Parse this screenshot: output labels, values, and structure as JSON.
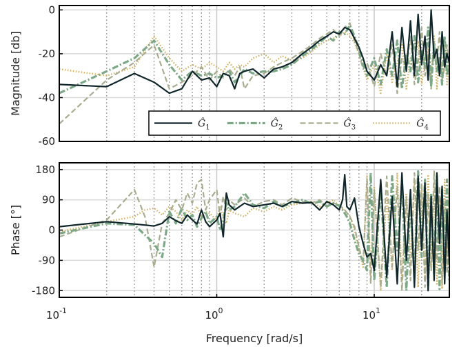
{
  "colors": {
    "G1": "#10262a",
    "G2": "#7ca887",
    "G3": "#a8ad8f",
    "G4": "#d1b266",
    "grid": "#d9d9d9",
    "major_grid": "#c8c8c8",
    "minor_grid": "#9a9a9a",
    "axis": "#000000"
  },
  "chart_data": [
    {
      "type": "line",
      "xscale": "log",
      "xlim": [
        0.1,
        30
      ],
      "ylim": [
        -60,
        2
      ],
      "ylabel": "Magnitude [db]",
      "xlabel": "",
      "yticks": [
        0,
        -20,
        -40,
        -60
      ],
      "ytick_labels": [
        "0",
        "-20",
        "-40",
        "-60"
      ],
      "legend": {
        "placement": "bottom-right",
        "entries": [
          {
            "label": "Ĝ₁",
            "base": "Ĝ",
            "sub": "1"
          },
          {
            "label": "Ĝ₂",
            "base": "Ĝ",
            "sub": "2"
          },
          {
            "label": "Ĝ₃",
            "base": "Ĝ",
            "sub": "3"
          },
          {
            "label": "Ĝ₄",
            "base": "Ĝ",
            "sub": "4"
          }
        ]
      },
      "series": [
        {
          "key": "G1",
          "style": "solid",
          "x": [
            0.1,
            0.2,
            0.3,
            0.4,
            0.5,
            0.6,
            0.7,
            0.8,
            0.9,
            1.0,
            1.1,
            1.2,
            1.3,
            1.4,
            1.5,
            1.7,
            2.0,
            2.3,
            2.6,
            3.0,
            3.5,
            4.0,
            4.5,
            5.0,
            5.5,
            6.0,
            6.5,
            7.0,
            7.5,
            8.0,
            8.5,
            9.0,
            10,
            11,
            12,
            13,
            14,
            15,
            16,
            17,
            18,
            19,
            20,
            21,
            22,
            23,
            24,
            25,
            26,
            27,
            28,
            29,
            30
          ],
          "y": [
            -34,
            -35,
            -29,
            -33,
            -38,
            -36,
            -28,
            -32,
            -31,
            -35,
            -29,
            -30,
            -36,
            -29,
            -28,
            -27,
            -31,
            -27,
            -26,
            -24,
            -20,
            -17,
            -14,
            -12,
            -10,
            -11,
            -8,
            -9,
            -13,
            -17,
            -22,
            -28,
            -32,
            -25,
            -30,
            -10,
            -35,
            -8,
            -28,
            -5,
            -30,
            -2,
            -25,
            -12,
            -32,
            0,
            -22,
            -18,
            -30,
            -10,
            -26,
            -20,
            -24
          ]
        },
        {
          "key": "G2",
          "style": "dashdot",
          "x": [
            0.1,
            0.2,
            0.3,
            0.4,
            0.5,
            0.6,
            0.7,
            0.8,
            0.9,
            1.0,
            1.1,
            1.2,
            1.3,
            1.4,
            1.5,
            1.7,
            2.0,
            2.3,
            2.6,
            3.0,
            3.5,
            4.0,
            4.5,
            5.0,
            5.5,
            6.0,
            6.5,
            7.0,
            7.5,
            8.0,
            8.5,
            9.0,
            10,
            11,
            12,
            13,
            14,
            15,
            16,
            17,
            18,
            19,
            20,
            21,
            22,
            23,
            24,
            25,
            26,
            27,
            28,
            29,
            30
          ],
          "y": [
            -38,
            -28,
            -22,
            -14,
            -25,
            -32,
            -28,
            -30,
            -29,
            -31,
            -30,
            -28,
            -33,
            -30,
            -27,
            -29,
            -28,
            -28,
            -27,
            -25,
            -21,
            -18,
            -15,
            -12,
            -14,
            -10,
            -11,
            -7,
            -12,
            -18,
            -25,
            -30,
            -22,
            -34,
            -18,
            -30,
            -14,
            -36,
            -20,
            -28,
            -12,
            -33,
            -18,
            -26,
            -8,
            -35,
            -15,
            -28,
            -22,
            -34,
            -12,
            -30,
            -20
          ]
        },
        {
          "key": "G3",
          "style": "dashed",
          "x": [
            0.1,
            0.2,
            0.3,
            0.4,
            0.5,
            0.6,
            0.7,
            0.8,
            0.9,
            1.0,
            1.1,
            1.2,
            1.3,
            1.4,
            1.5,
            1.7,
            2.0,
            2.3,
            2.6,
            3.0,
            3.5,
            4.0,
            4.5,
            5.0,
            5.5,
            6.0,
            6.5,
            7.0,
            7.5,
            8.0,
            8.5,
            9.0,
            10,
            11,
            12,
            13,
            14,
            15,
            16,
            17,
            18,
            19,
            20,
            21,
            22,
            23,
            24,
            25,
            26,
            27,
            28,
            29,
            30
          ],
          "y": [
            -52,
            -32,
            -24,
            -16,
            -36,
            -33,
            -30,
            -26,
            -32,
            -28,
            -31,
            -27,
            -30,
            -26,
            -36,
            -30,
            -29,
            -26,
            -24,
            -22,
            -19,
            -16,
            -13,
            -11,
            -9,
            -12,
            -8,
            -6,
            -14,
            -20,
            -27,
            -24,
            -35,
            -20,
            -30,
            -16,
            -38,
            -22,
            -26,
            -12,
            -34,
            -24,
            -8,
            -30,
            -20,
            -36,
            -14,
            -24,
            -10,
            -32,
            -26,
            -16,
            -28
          ]
        },
        {
          "key": "G4",
          "style": "dotted",
          "x": [
            0.1,
            0.2,
            0.3,
            0.4,
            0.5,
            0.6,
            0.7,
            0.8,
            0.9,
            1.0,
            1.1,
            1.2,
            1.3,
            1.4,
            1.5,
            1.7,
            2.0,
            2.3,
            2.6,
            3.0,
            3.5,
            4.0,
            4.5,
            5.0,
            5.5,
            6.0,
            6.5,
            7.0,
            7.5,
            8.0,
            8.5,
            9.0,
            10,
            11,
            12,
            13,
            14,
            15,
            16,
            17,
            18,
            19,
            20,
            21,
            22,
            23,
            24,
            25,
            26,
            27,
            28,
            29,
            30
          ],
          "y": [
            -27,
            -30,
            -26,
            -12,
            -22,
            -28,
            -25,
            -27,
            -24,
            -26,
            -28,
            -24,
            -27,
            -25,
            -26,
            -22,
            -20,
            -24,
            -21,
            -23,
            -22,
            -19,
            -16,
            -14,
            -13,
            -12,
            -10,
            -12,
            -15,
            -20,
            -26,
            -32,
            -25,
            -38,
            -20,
            -33,
            -24,
            -16,
            -36,
            -22,
            -28,
            -14,
            -34,
            -24,
            -18,
            -30,
            -12,
            -36,
            -22,
            -28,
            -16,
            -34,
            -22
          ]
        }
      ]
    },
    {
      "type": "line",
      "xscale": "log",
      "xlim": [
        0.1,
        30
      ],
      "ylim": [
        -200,
        200
      ],
      "ylabel": "Phase [°]",
      "xlabel": "Frequency [rad/s]",
      "yticks": [
        180,
        90,
        0,
        -90,
        -180
      ],
      "ytick_labels": [
        "180",
        "90",
        "0",
        "-90",
        "-180"
      ],
      "xticks": [
        0.1,
        1,
        10
      ],
      "xtick_labels": [
        {
          "base": "10",
          "exp": "-1"
        },
        {
          "base": "10",
          "exp": "0"
        },
        {
          "base": "10",
          "exp": "1"
        }
      ],
      "series": [
        {
          "key": "G1",
          "style": "solid",
          "x": [
            0.1,
            0.2,
            0.3,
            0.4,
            0.45,
            0.5,
            0.55,
            0.6,
            0.65,
            0.7,
            0.75,
            0.8,
            0.85,
            0.9,
            1.0,
            1.05,
            1.1,
            1.15,
            1.2,
            1.3,
            1.5,
            1.7,
            2.0,
            2.3,
            2.6,
            3.0,
            3.5,
            4.0,
            4.5,
            5.0,
            5.5,
            6.0,
            6.3,
            6.5,
            6.7,
            7.0,
            7.5,
            8.0,
            8.5,
            9.0,
            9.5,
            10,
            11,
            12,
            13,
            14,
            15,
            16,
            17,
            18,
            19,
            20,
            21,
            22,
            23,
            24,
            25,
            26,
            27,
            28,
            29,
            30
          ],
          "y": [
            10,
            25,
            18,
            12,
            20,
            40,
            28,
            20,
            45,
            30,
            18,
            60,
            25,
            10,
            30,
            50,
            -20,
            110,
            75,
            60,
            80,
            70,
            75,
            80,
            70,
            85,
            80,
            82,
            60,
            85,
            75,
            60,
            90,
            165,
            70,
            60,
            95,
            10,
            -40,
            -80,
            -70,
            -120,
            150,
            -140,
            100,
            -160,
            170,
            -90,
            120,
            -170,
            160,
            -60,
            140,
            -180,
            100,
            -150,
            170,
            -40,
            130,
            -160,
            60,
            -100
          ]
        },
        {
          "key": "G2",
          "style": "dashdot",
          "x": [
            0.1,
            0.2,
            0.3,
            0.4,
            0.45,
            0.5,
            0.55,
            0.6,
            0.65,
            0.7,
            0.75,
            0.8,
            0.85,
            0.9,
            1.0,
            1.05,
            1.1,
            1.15,
            1.2,
            1.3,
            1.5,
            1.7,
            2.0,
            2.3,
            2.6,
            3.0,
            3.5,
            4.0,
            4.5,
            5.0,
            5.5,
            6.0,
            6.3,
            6.5,
            6.7,
            7.0,
            7.5,
            8.0,
            8.5,
            9.0,
            9.5,
            10,
            11,
            12,
            13,
            14,
            15,
            16,
            17,
            18,
            19,
            20,
            21,
            22,
            23,
            24,
            25,
            26,
            27,
            28,
            29,
            30
          ],
          "y": [
            -10,
            20,
            15,
            -40,
            -80,
            55,
            20,
            65,
            30,
            45,
            10,
            35,
            55,
            20,
            40,
            0,
            30,
            80,
            60,
            70,
            110,
            75,
            65,
            85,
            70,
            80,
            90,
            78,
            85,
            70,
            80,
            72,
            60,
            50,
            40,
            20,
            -30,
            -70,
            -90,
            -120,
            170,
            -150,
            120,
            -170,
            160,
            -60,
            140,
            -180,
            90,
            -140,
            175,
            -80,
            150,
            -165,
            110,
            -130,
            160,
            -175,
            120,
            -110,
            150,
            -150
          ]
        },
        {
          "key": "G3",
          "style": "dashed",
          "x": [
            0.1,
            0.2,
            0.3,
            0.35,
            0.4,
            0.45,
            0.5,
            0.55,
            0.6,
            0.65,
            0.7,
            0.75,
            0.8,
            0.85,
            0.9,
            1.0,
            1.05,
            1.1,
            1.15,
            1.2,
            1.3,
            1.5,
            1.7,
            2.0,
            2.3,
            2.6,
            3.0,
            3.5,
            4.0,
            4.5,
            5.0,
            5.5,
            6.0,
            6.5,
            7.0,
            7.5,
            8.0,
            8.5,
            9.0,
            9.5,
            10,
            11,
            12,
            13,
            14,
            15,
            16,
            17,
            18,
            19,
            20,
            21,
            22,
            23,
            24,
            25,
            26,
            27,
            28,
            29,
            30
          ],
          "y": [
            -20,
            30,
            120,
            40,
            -110,
            20,
            50,
            90,
            60,
            110,
            80,
            140,
            150,
            60,
            90,
            120,
            40,
            100,
            60,
            90,
            75,
            95,
            70,
            85,
            90,
            75,
            95,
            85,
            80,
            90,
            70,
            80,
            75,
            60,
            40,
            10,
            -50,
            -100,
            150,
            -160,
            120,
            -170,
            160,
            -110,
            130,
            -180,
            100,
            -150,
            170,
            -60,
            140,
            -170,
            110,
            -120,
            175,
            -90,
            130,
            -160,
            80,
            -130,
            120
          ]
        },
        {
          "key": "G4",
          "style": "dotted",
          "x": [
            0.1,
            0.2,
            0.3,
            0.35,
            0.4,
            0.45,
            0.5,
            0.55,
            0.6,
            0.65,
            0.7,
            0.75,
            0.8,
            0.85,
            0.9,
            1.0,
            1.05,
            1.1,
            1.15,
            1.2,
            1.3,
            1.5,
            1.7,
            2.0,
            2.3,
            2.6,
            3.0,
            3.5,
            4.0,
            4.5,
            5.0,
            5.5,
            6.0,
            6.5,
            7.0,
            7.5,
            8.0,
            8.5,
            9.0,
            9.5,
            10,
            11,
            12,
            13,
            14,
            15,
            16,
            17,
            18,
            19,
            20,
            21,
            22,
            23,
            24,
            25,
            26,
            27,
            28,
            29,
            30
          ],
          "y": [
            -5,
            25,
            40,
            60,
            65,
            45,
            70,
            55,
            30,
            60,
            45,
            70,
            40,
            55,
            50,
            30,
            70,
            40,
            20,
            60,
            50,
            40,
            65,
            55,
            70,
            60,
            75,
            80,
            85,
            70,
            80,
            90,
            70,
            60,
            40,
            0,
            -60,
            -110,
            160,
            -140,
            130,
            -180,
            100,
            -120,
            170,
            -150,
            110,
            -90,
            150,
            -170,
            120,
            -140,
            165,
            -110,
            140,
            -160,
            100,
            -175,
            150,
            -120,
            110
          ]
        }
      ]
    }
  ]
}
